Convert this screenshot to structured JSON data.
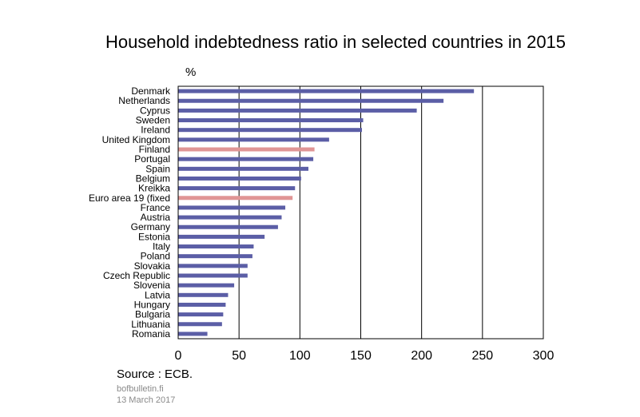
{
  "chart_data": {
    "type": "bar",
    "orientation": "horizontal",
    "title": "Household indebtedness ratio in selected countries in 2015",
    "unit_label": "%",
    "xlim": [
      0,
      300
    ],
    "xticks": [
      0,
      50,
      100,
      150,
      200,
      250,
      300
    ],
    "grid": "vertical",
    "categories": [
      "Denmark",
      "Netherlands",
      "Cyprus",
      "Sweden",
      "Ireland",
      "United Kingdom",
      "Finland",
      "Portugal",
      "Spain",
      "Belgium",
      "Kreikka",
      "Euro area 19 (fixed",
      "France",
      "Austria",
      "Germany",
      "Estonia",
      "Italy",
      "Poland",
      "Slovakia",
      "Czech Republic",
      "Slovenia",
      "Latvia",
      "Hungary",
      "Bulgaria",
      "Lithuania",
      "Romania"
    ],
    "values": [
      243,
      218,
      196,
      152,
      151,
      124,
      112,
      111,
      107,
      101,
      96,
      94,
      88,
      85,
      82,
      71,
      62,
      61,
      57,
      57,
      46,
      41,
      39,
      37,
      36,
      24
    ],
    "highlight": [
      "Finland",
      "Euro area 19 (fixed"
    ],
    "colors": {
      "default": "#5b5ea6",
      "highlight": "#e09595"
    }
  },
  "footer": {
    "source": "Source : ECB.",
    "site": "bofbulletin.fi",
    "date": "13 March 2017"
  }
}
